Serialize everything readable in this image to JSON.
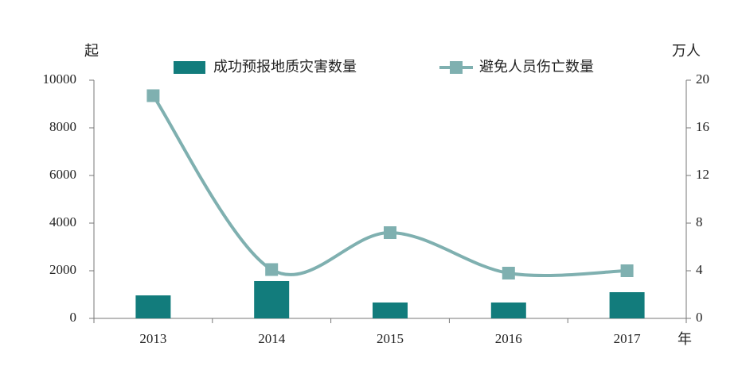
{
  "chart_data": {
    "type": "combo",
    "categories": [
      "2013",
      "2014",
      "2015",
      "2016",
      "2017"
    ],
    "series": [
      {
        "name": "成功预报地质灾害数量",
        "type": "bar",
        "color": "#127c7c",
        "values": [
          966,
          1567,
          667,
          667,
          1100
        ]
      },
      {
        "name": "避免人员伤亡数量",
        "type": "line",
        "axis": "y2",
        "color": "#7fb0b0",
        "values": [
          18.7,
          4.1,
          7.2,
          3.8,
          4.0
        ]
      }
    ],
    "y_label": "起",
    "y2_label": "万人",
    "x_label": "年",
    "ylim": [
      0,
      10000
    ],
    "yticks": [
      0,
      2000,
      4000,
      6000,
      8000,
      10000
    ],
    "y2lim": [
      0,
      20
    ],
    "y2ticks": [
      0,
      4,
      8,
      12,
      16,
      20
    ],
    "legend": "top",
    "grid": false
  }
}
